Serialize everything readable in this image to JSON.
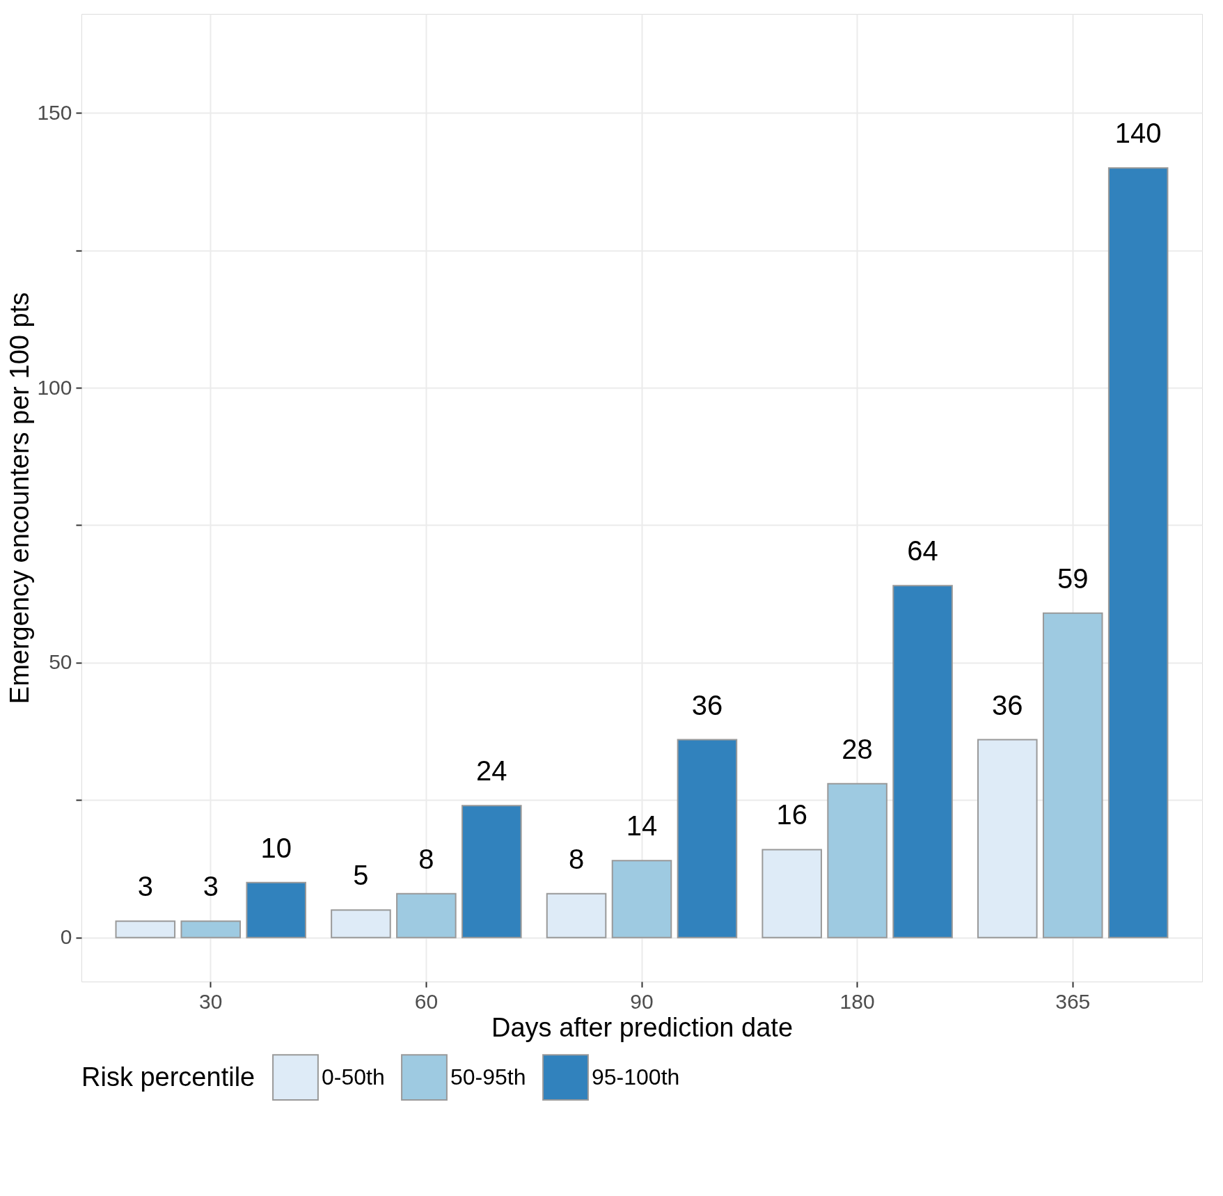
{
  "chart_data": {
    "type": "bar",
    "xlabel": "Days after prediction date",
    "ylabel": "Emergency encounters per 100 pts",
    "legend_title": "Risk percentile",
    "categories": [
      "30",
      "60",
      "90",
      "180",
      "365"
    ],
    "series": [
      {
        "name": "0-50th",
        "color": "#deebf7",
        "values": [
          3,
          5,
          8,
          16,
          36
        ]
      },
      {
        "name": "50-95th",
        "color": "#9ecae1",
        "values": [
          3,
          8,
          14,
          28,
          59
        ]
      },
      {
        "name": "95-100th",
        "color": "#3182bd",
        "values": [
          10,
          24,
          36,
          64,
          140
        ]
      }
    ],
    "ylim": [
      -8,
      168
    ],
    "yticks": [
      0,
      {
        "value": 25,
        "label": null
      },
      50,
      {
        "value": 75,
        "label": null
      },
      100,
      {
        "value": 125,
        "label": null
      },
      150
    ],
    "grid": true,
    "legend": "bottom",
    "data_labels": true
  }
}
